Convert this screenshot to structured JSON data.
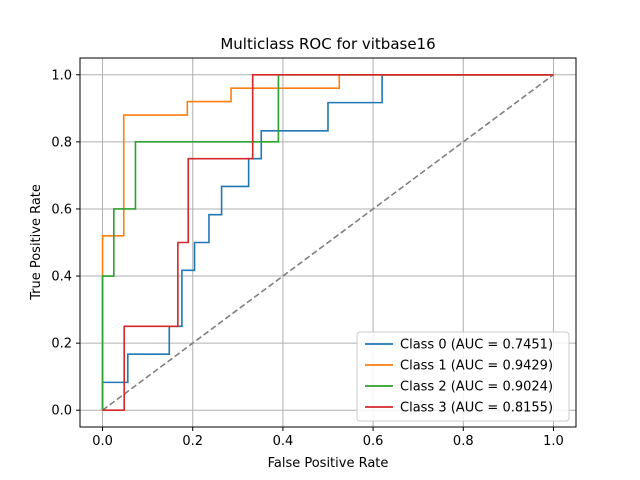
{
  "chart_data": {
    "type": "line",
    "title": "Multiclass ROC for vitbase16",
    "xlabel": "False Positive Rate",
    "ylabel": "True Positive Rate",
    "xlim": [
      -0.05,
      1.05
    ],
    "ylim": [
      -0.05,
      1.05
    ],
    "xticks": [
      0.0,
      0.2,
      0.4,
      0.6,
      0.8,
      1.0
    ],
    "yticks": [
      0.0,
      0.2,
      0.4,
      0.6,
      0.8,
      1.0
    ],
    "xtick_labels": [
      "0.0",
      "0.2",
      "0.4",
      "0.6",
      "0.8",
      "1.0"
    ],
    "ytick_labels": [
      "0.0",
      "0.2",
      "0.4",
      "0.6",
      "0.8",
      "1.0"
    ],
    "grid": true,
    "legend_position": "lower-right",
    "diagonal": {
      "x": [
        0,
        1
      ],
      "y": [
        0,
        1
      ],
      "color": "#808080",
      "style": "dashed"
    },
    "series": [
      {
        "name": "Class 0 (AUC = 0.7451)",
        "color": "#1f77b4",
        "x": [
          0,
          0,
          0.056,
          0.056,
          0.148,
          0.148,
          0.176,
          0.176,
          0.204,
          0.204,
          0.236,
          0.236,
          0.264,
          0.264,
          0.324,
          0.324,
          0.352,
          0.352,
          0.5,
          0.5,
          0.62,
          0.62,
          1.0
        ],
        "y": [
          0,
          0.083,
          0.083,
          0.167,
          0.167,
          0.25,
          0.25,
          0.417,
          0.417,
          0.5,
          0.5,
          0.583,
          0.583,
          0.667,
          0.667,
          0.75,
          0.75,
          0.833,
          0.833,
          0.917,
          0.917,
          1.0,
          1.0
        ]
      },
      {
        "name": "Class 1 (AUC = 0.9429)",
        "color": "#ff7f0e",
        "x": [
          0,
          0,
          0.047,
          0.047,
          0.188,
          0.188,
          0.285,
          0.285,
          0.525,
          0.525,
          1.0
        ],
        "y": [
          0,
          0.52,
          0.52,
          0.88,
          0.88,
          0.92,
          0.92,
          0.96,
          0.96,
          1.0,
          1.0
        ]
      },
      {
        "name": "Class 2 (AUC = 0.9024)",
        "color": "#2ca02c",
        "x": [
          0,
          0,
          0.025,
          0.025,
          0.073,
          0.073,
          0.39,
          0.39,
          1.0
        ],
        "y": [
          0,
          0.4,
          0.4,
          0.6,
          0.6,
          0.8,
          0.8,
          1.0,
          1.0
        ]
      },
      {
        "name": "Class 3 (AUC = 0.8155)",
        "color": "#d62728",
        "x": [
          0,
          0.048,
          0.048,
          0.167,
          0.167,
          0.19,
          0.19,
          0.333,
          0.333,
          1.0
        ],
        "y": [
          0,
          0,
          0.25,
          0.25,
          0.5,
          0.5,
          0.75,
          0.75,
          1.0,
          1.0
        ]
      }
    ]
  }
}
